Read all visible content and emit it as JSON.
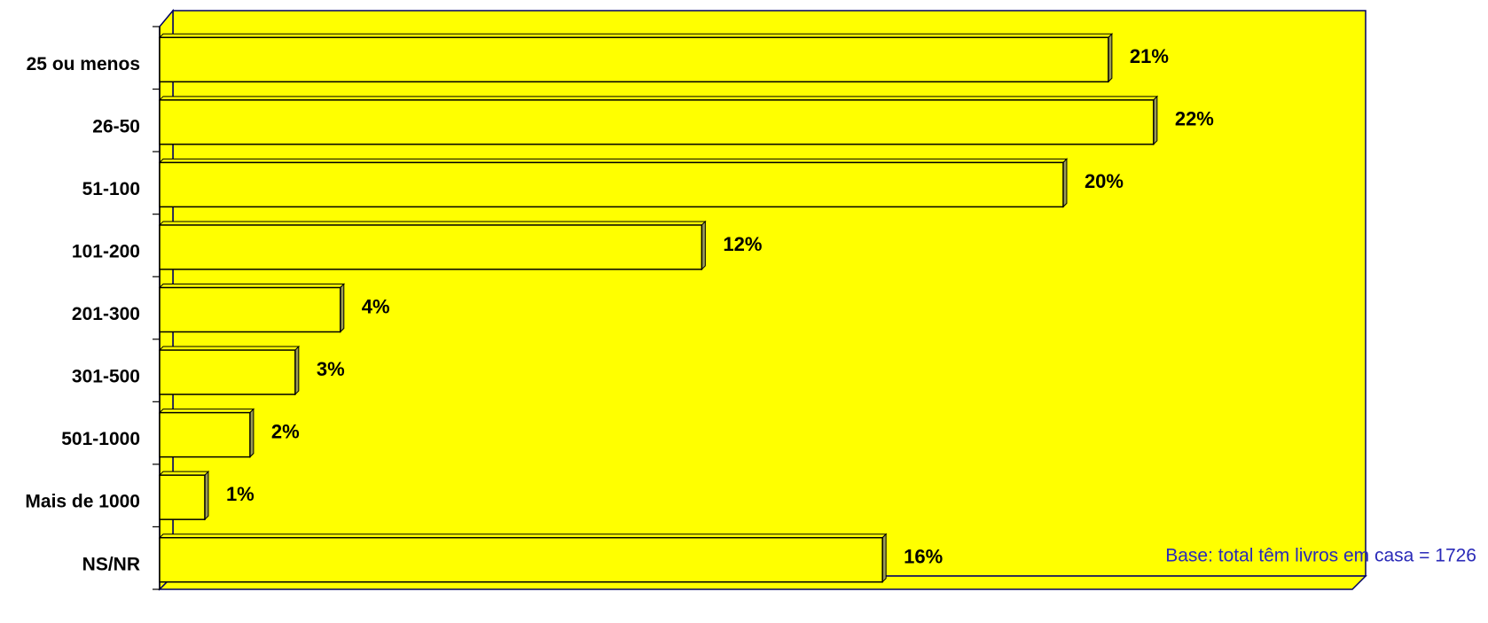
{
  "chart_data": {
    "type": "bar",
    "orientation": "horizontal",
    "categories": [
      "25 ou menos",
      "26-50",
      "51-100",
      "101-200",
      "201-300",
      "301-500",
      "501-1000",
      "Mais de 1000",
      "NS/NR"
    ],
    "values": [
      21,
      22,
      20,
      12,
      4,
      3,
      2,
      1,
      16
    ],
    "value_labels": [
      "21%",
      "22%",
      "20%",
      "12%",
      "4%",
      "3%",
      "2%",
      "1%",
      "16%"
    ],
    "xlim": [
      0,
      26.4
    ],
    "color": "#ffff00",
    "background_color": "#ffff00",
    "annotation": "Base: total  têm livros em casa = 1726"
  }
}
